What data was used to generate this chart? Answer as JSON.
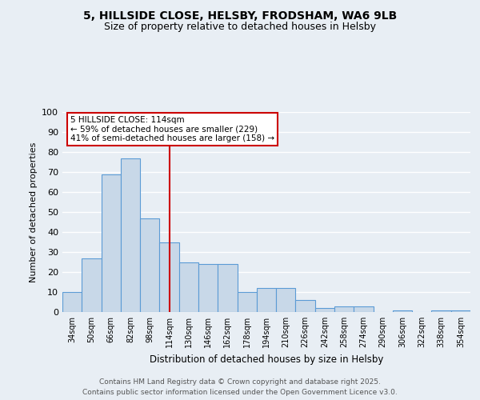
{
  "title_line1": "5, HILLSIDE CLOSE, HELSBY, FRODSHAM, WA6 9LB",
  "title_line2": "Size of property relative to detached houses in Helsby",
  "xlabel": "Distribution of detached houses by size in Helsby",
  "ylabel": "Number of detached properties",
  "categories": [
    "34sqm",
    "50sqm",
    "66sqm",
    "82sqm",
    "98sqm",
    "114sqm",
    "130sqm",
    "146sqm",
    "162sqm",
    "178sqm",
    "194sqm",
    "210sqm",
    "226sqm",
    "242sqm",
    "258sqm",
    "274sqm",
    "290sqm",
    "306sqm",
    "322sqm",
    "338sqm",
    "354sqm"
  ],
  "values": [
    10,
    27,
    69,
    77,
    47,
    35,
    25,
    24,
    24,
    10,
    12,
    12,
    6,
    2,
    3,
    3,
    0,
    1,
    0,
    1,
    1
  ],
  "bar_color": "#c8d8e8",
  "bar_edge_color": "#5b9bd5",
  "highlight_index": 5,
  "highlight_line_color": "#cc0000",
  "ylim": [
    0,
    100
  ],
  "yticks": [
    0,
    10,
    20,
    30,
    40,
    50,
    60,
    70,
    80,
    90,
    100
  ],
  "annotation_line1": "5 HILLSIDE CLOSE: 114sqm",
  "annotation_line2": "← 59% of detached houses are smaller (229)",
  "annotation_line3": "41% of semi-detached houses are larger (158) →",
  "annotation_box_color": "#ffffff",
  "annotation_box_edge": "#cc0000",
  "footer_line1": "Contains HM Land Registry data © Crown copyright and database right 2025.",
  "footer_line2": "Contains public sector information licensed under the Open Government Licence v3.0.",
  "background_color": "#e8eef4",
  "grid_color": "#ffffff",
  "fig_width": 6.0,
  "fig_height": 5.0
}
